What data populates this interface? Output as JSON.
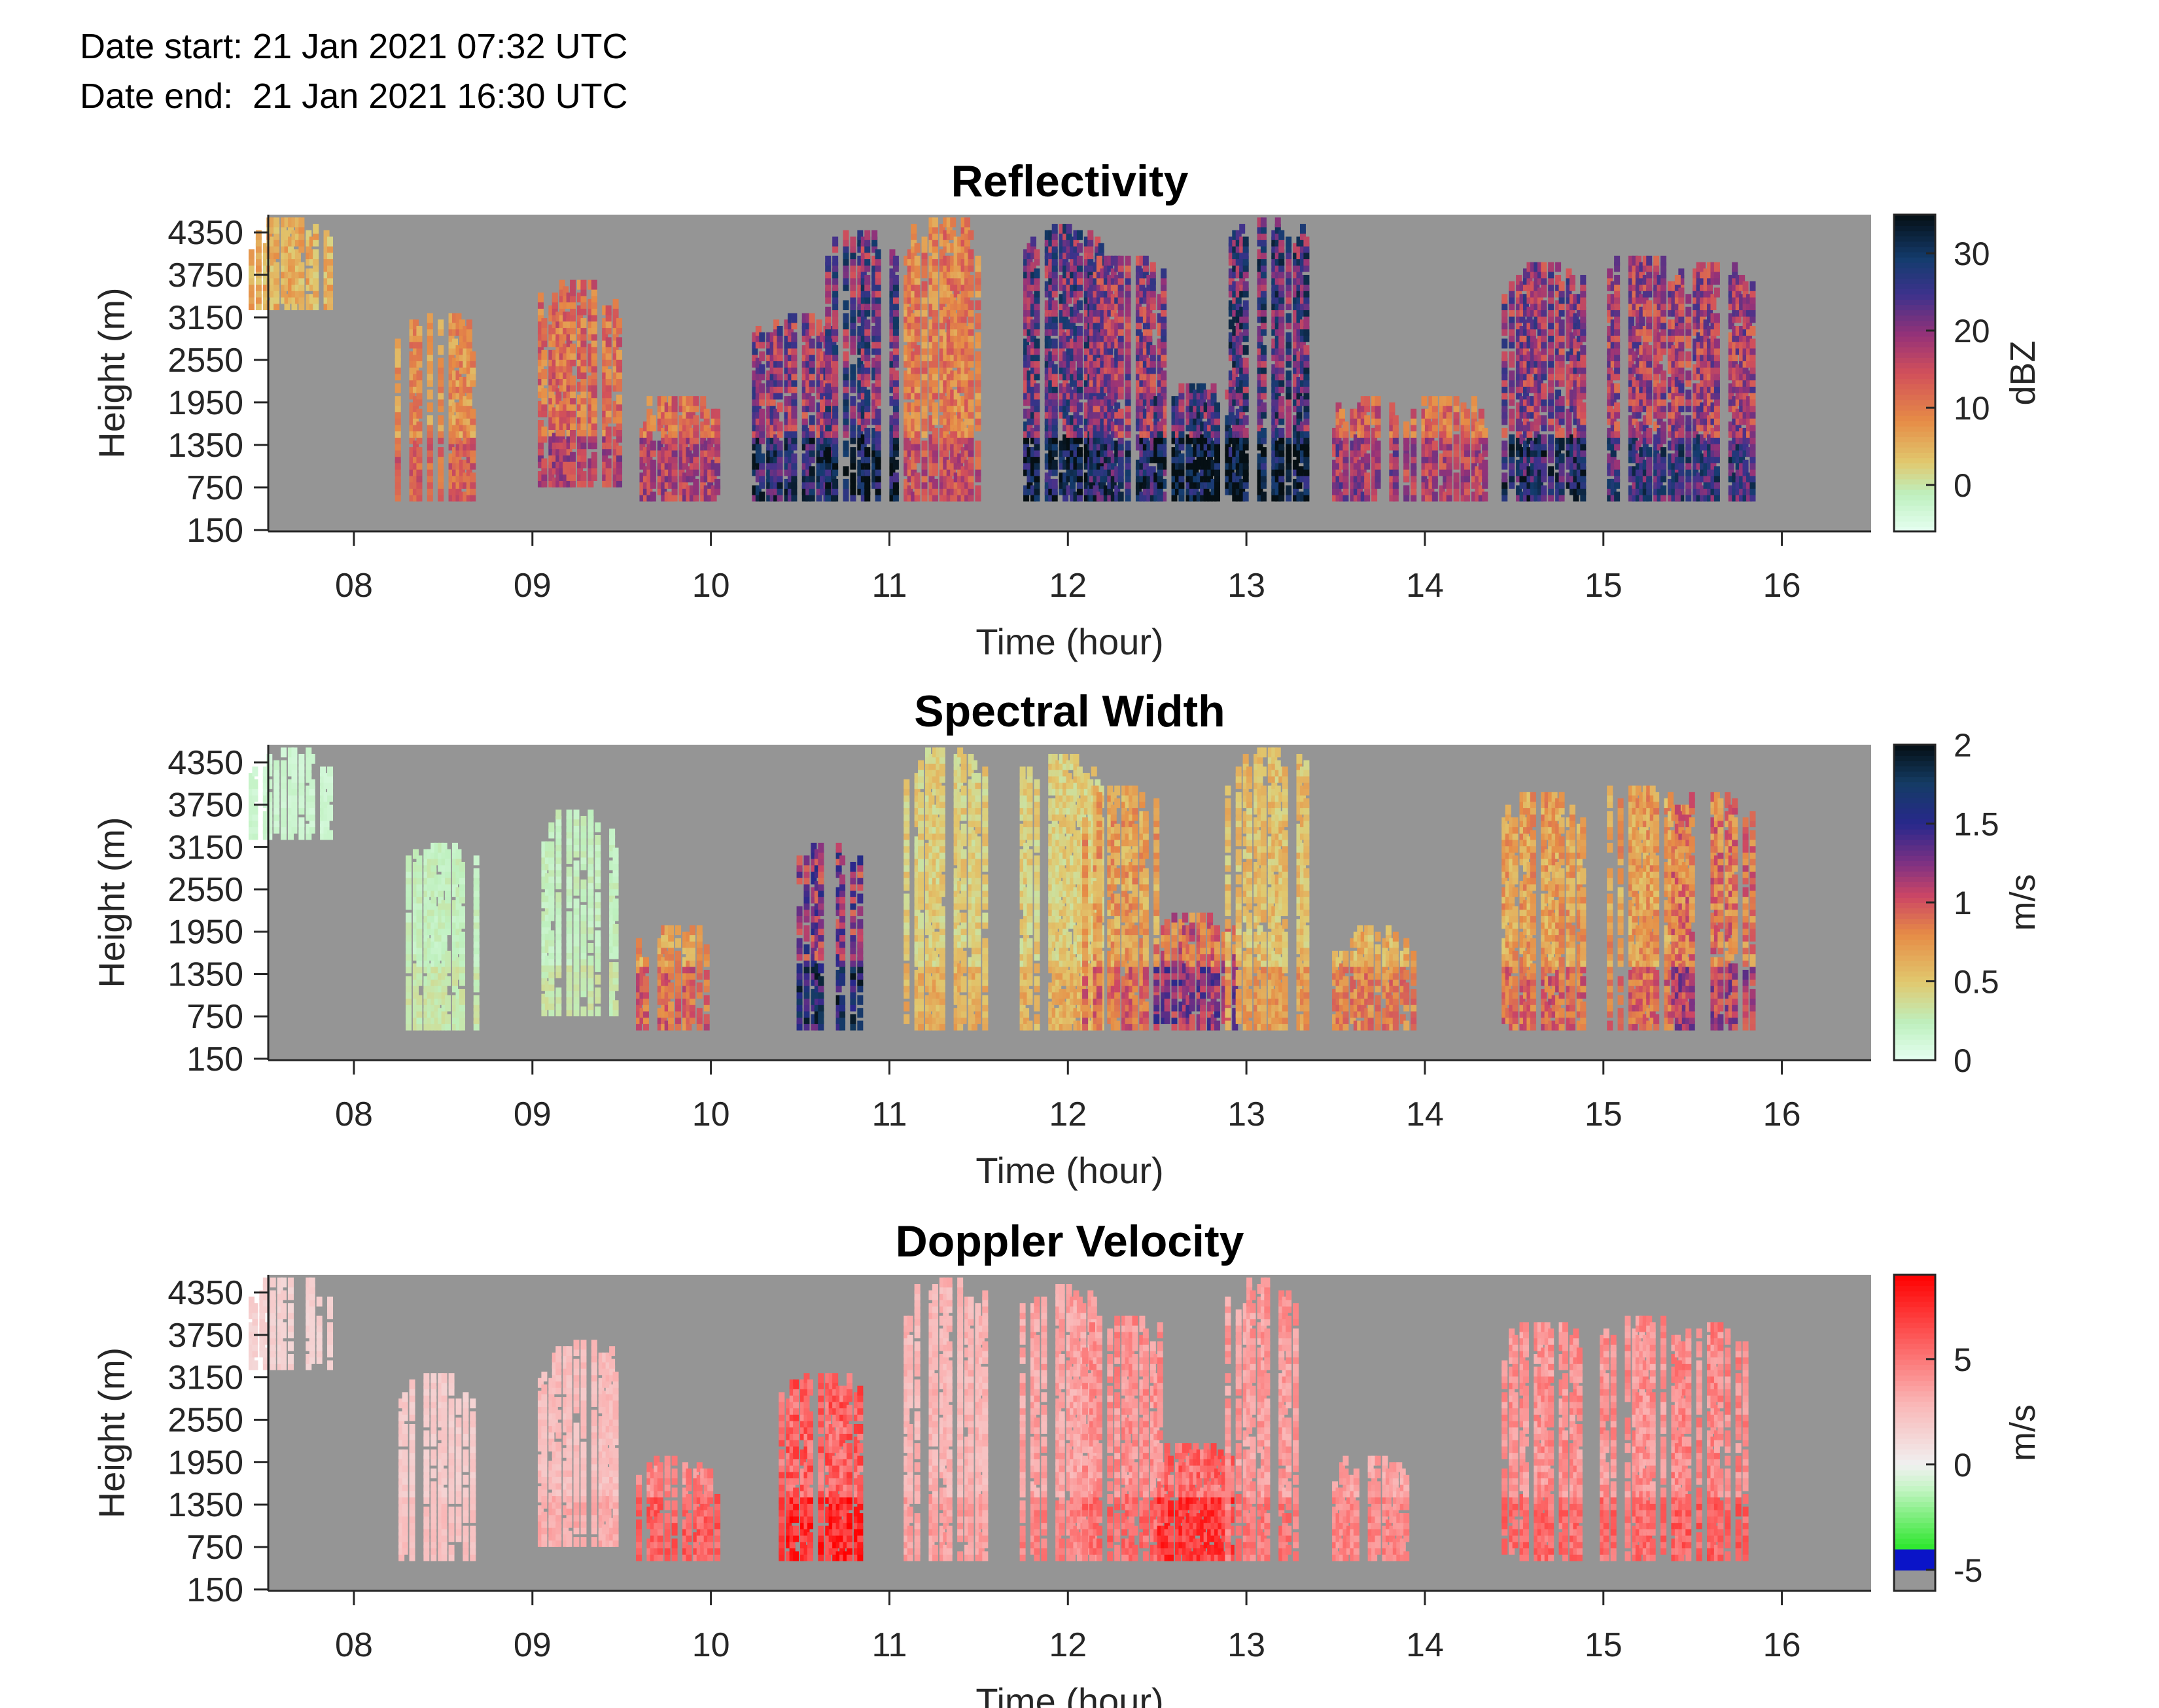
{
  "header": {
    "date_start": "Date start: 21 Jan 2021 07:32 UTC",
    "date_end": "Date end:  21 Jan 2021 16:30 UTC"
  },
  "colors": {
    "background_mask": "#959595",
    "axis": "#262626"
  },
  "chart_data": [
    {
      "type": "heatmap",
      "title": "Reflectivity",
      "xlabel": "Time (hour)",
      "ylabel": "Height (m)",
      "x_ticks": [
        "08",
        "09",
        "10",
        "11",
        "12",
        "13",
        "14",
        "15",
        "16"
      ],
      "y_ticks": [
        "150",
        "750",
        "1350",
        "1950",
        "2550",
        "3150",
        "3750",
        "4350"
      ],
      "xlim": [
        7.52,
        16.5
      ],
      "ylim": [
        130,
        4600
      ],
      "colorbar": {
        "label": "dBZ",
        "ticks": [
          "0",
          "10",
          "20",
          "30"
        ],
        "tick_values": [
          0,
          10,
          20,
          30
        ],
        "range": [
          -6,
          35
        ],
        "colormap": "reflectivity"
      },
      "field": "refl",
      "echoes": [
        {
          "x": 7.63,
          "top": 4500,
          "base": 3300,
          "intensity": 0.35
        },
        {
          "x": 8.45,
          "top": 3200,
          "base": 600,
          "intensity": 0.45
        },
        {
          "x": 9.25,
          "top": 3600,
          "base": 800,
          "intensity": 0.55
        },
        {
          "x": 9.8,
          "top": 2000,
          "base": 600,
          "intensity": 0.55
        },
        {
          "x": 10.45,
          "top": 3200,
          "base": 600,
          "intensity": 0.8
        },
        {
          "x": 10.8,
          "top": 4300,
          "base": 600,
          "intensity": 0.9
        },
        {
          "x": 11.3,
          "top": 4500,
          "base": 600,
          "intensity": 0.5
        },
        {
          "x": 11.95,
          "top": 4400,
          "base": 600,
          "intensity": 0.9
        },
        {
          "x": 12.3,
          "top": 4000,
          "base": 600,
          "intensity": 0.8
        },
        {
          "x": 12.7,
          "top": 2200,
          "base": 600,
          "intensity": 0.95
        },
        {
          "x": 13.1,
          "top": 4500,
          "base": 600,
          "intensity": 0.95
        },
        {
          "x": 13.7,
          "top": 2000,
          "base": 600,
          "intensity": 0.6
        },
        {
          "x": 14.1,
          "top": 2000,
          "base": 600,
          "intensity": 0.55
        },
        {
          "x": 14.65,
          "top": 3900,
          "base": 600,
          "intensity": 0.8
        },
        {
          "x": 15.2,
          "top": 4000,
          "base": 600,
          "intensity": 0.75
        },
        {
          "x": 15.6,
          "top": 3900,
          "base": 600,
          "intensity": 0.75
        }
      ]
    },
    {
      "type": "heatmap",
      "title": "Spectral Width",
      "xlabel": "Time (hour)",
      "ylabel": "Height (m)",
      "x_ticks": [
        "08",
        "09",
        "10",
        "11",
        "12",
        "13",
        "14",
        "15",
        "16"
      ],
      "y_ticks": [
        "150",
        "750",
        "1350",
        "1950",
        "2550",
        "3150",
        "3750",
        "4350"
      ],
      "xlim": [
        7.52,
        16.5
      ],
      "ylim": [
        130,
        4600
      ],
      "colorbar": {
        "label": "m/s",
        "ticks": [
          "0",
          "0.5",
          "1",
          "1.5",
          "2"
        ],
        "tick_values": [
          0,
          0.5,
          1,
          1.5,
          2
        ],
        "range": [
          0,
          2
        ],
        "colormap": "width"
      },
      "field": "width",
      "echoes": [
        {
          "x": 7.63,
          "top": 4500,
          "base": 3300,
          "intensity": 0.1
        },
        {
          "x": 8.45,
          "top": 3200,
          "base": 600,
          "intensity": 0.15
        },
        {
          "x": 9.25,
          "top": 3600,
          "base": 800,
          "intensity": 0.15
        },
        {
          "x": 9.8,
          "top": 2000,
          "base": 600,
          "intensity": 0.45
        },
        {
          "x": 10.6,
          "top": 3200,
          "base": 600,
          "intensity": 0.8
        },
        {
          "x": 11.3,
          "top": 4500,
          "base": 600,
          "intensity": 0.3
        },
        {
          "x": 11.95,
          "top": 4400,
          "base": 600,
          "intensity": 0.3
        },
        {
          "x": 12.3,
          "top": 4000,
          "base": 600,
          "intensity": 0.45
        },
        {
          "x": 12.7,
          "top": 2200,
          "base": 600,
          "intensity": 0.6
        },
        {
          "x": 13.1,
          "top": 4500,
          "base": 600,
          "intensity": 0.35
        },
        {
          "x": 13.7,
          "top": 2000,
          "base": 600,
          "intensity": 0.4
        },
        {
          "x": 14.65,
          "top": 3900,
          "base": 600,
          "intensity": 0.45
        },
        {
          "x": 15.2,
          "top": 4000,
          "base": 600,
          "intensity": 0.45
        },
        {
          "x": 15.6,
          "top": 3900,
          "base": 600,
          "intensity": 0.55
        }
      ]
    },
    {
      "type": "heatmap",
      "title": "Doppler Velocity",
      "xlabel": "Time (hour)",
      "ylabel": "Height (m)",
      "x_ticks": [
        "08",
        "09",
        "10",
        "11",
        "12",
        "13",
        "14",
        "15",
        "16"
      ],
      "y_ticks": [
        "150",
        "750",
        "1350",
        "1950",
        "2550",
        "3150",
        "3750",
        "4350"
      ],
      "xlim": [
        7.52,
        16.5
      ],
      "ylim": [
        130,
        4600
      ],
      "colorbar": {
        "label": "m/s",
        "ticks": [
          "-5",
          "0",
          "5"
        ],
        "tick_values": [
          -5,
          0,
          5
        ],
        "range": [
          -6,
          9
        ],
        "colormap": "velocity"
      },
      "field": "vel",
      "echoes": [
        {
          "x": 7.63,
          "top": 4500,
          "base": 3300,
          "intensity": 0.2
        },
        {
          "x": 8.45,
          "top": 3200,
          "base": 600,
          "intensity": 0.25
        },
        {
          "x": 9.25,
          "top": 3600,
          "base": 800,
          "intensity": 0.35
        },
        {
          "x": 9.8,
          "top": 2000,
          "base": 600,
          "intensity": 0.65
        },
        {
          "x": 10.6,
          "top": 3200,
          "base": 600,
          "intensity": 0.85
        },
        {
          "x": 11.3,
          "top": 4500,
          "base": 600,
          "intensity": 0.4
        },
        {
          "x": 11.95,
          "top": 4400,
          "base": 600,
          "intensity": 0.5
        },
        {
          "x": 12.3,
          "top": 4000,
          "base": 600,
          "intensity": 0.6
        },
        {
          "x": 12.7,
          "top": 2200,
          "base": 600,
          "intensity": 0.8
        },
        {
          "x": 13.1,
          "top": 4500,
          "base": 600,
          "intensity": 0.55
        },
        {
          "x": 13.7,
          "top": 2000,
          "base": 600,
          "intensity": 0.5
        },
        {
          "x": 14.65,
          "top": 3900,
          "base": 600,
          "intensity": 0.6
        },
        {
          "x": 15.2,
          "top": 4000,
          "base": 600,
          "intensity": 0.6
        },
        {
          "x": 15.6,
          "top": 3900,
          "base": 600,
          "intensity": 0.65
        }
      ]
    }
  ]
}
